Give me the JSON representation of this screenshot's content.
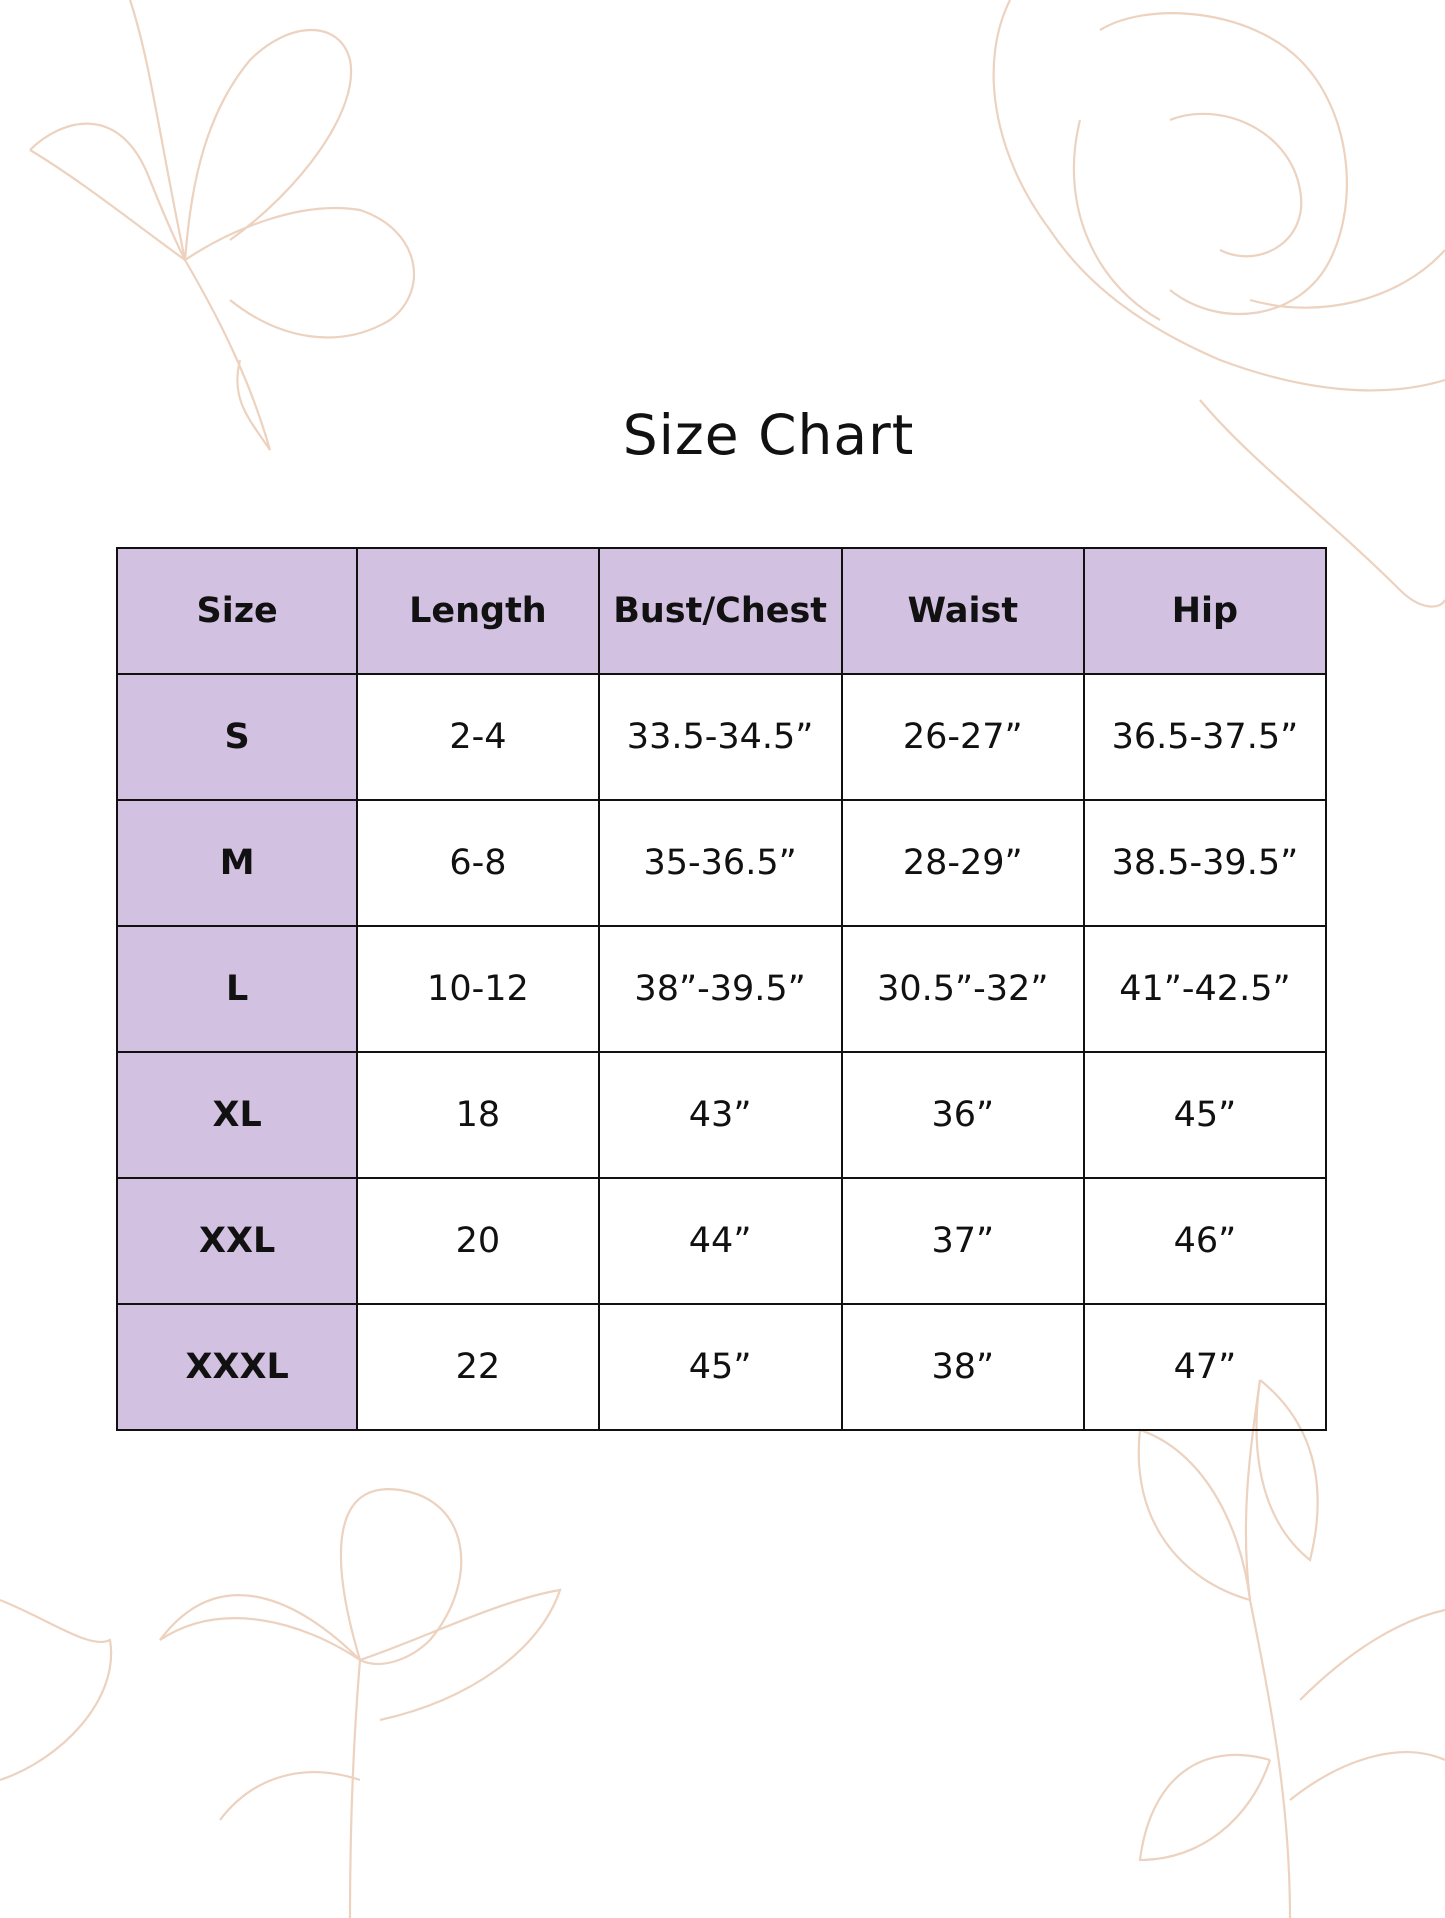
{
  "title": "Size Chart",
  "colors": {
    "header_fill": "#d2c1e0",
    "decoration": "#ecd2bf",
    "border": "#111111"
  },
  "table": {
    "headers": [
      "Size",
      "Length",
      "Bust/Chest",
      "Waist",
      "Hip"
    ],
    "rows": [
      [
        "S",
        "2-4",
        "33.5-34.5”",
        "26-27”",
        "36.5-37.5”"
      ],
      [
        "M",
        "6-8",
        "35-36.5”",
        "28-29”",
        "38.5-39.5”"
      ],
      [
        "L",
        "10-12",
        "38”-39.5”",
        "30.5”-32”",
        "41”-42.5”"
      ],
      [
        "XL",
        "18",
        "43”",
        "36”",
        "45”"
      ],
      [
        "XXL",
        "20",
        "44”",
        "37”",
        "46”"
      ],
      [
        "XXXL",
        "22",
        "45”",
        "38”",
        "47”"
      ]
    ]
  }
}
